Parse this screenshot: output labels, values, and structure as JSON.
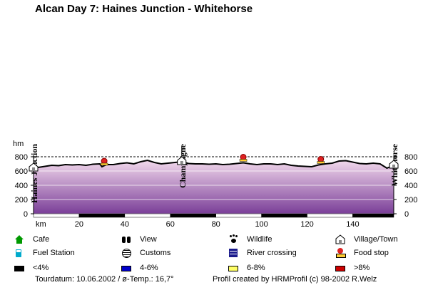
{
  "chart_data": {
    "type": "area",
    "title": "Alcan Day 7: Haines Junction - Whitehorse",
    "xlabel": "km",
    "ylabel": "hm",
    "xlim": [
      0,
      158
    ],
    "ylim": [
      0,
      800
    ],
    "x_ticks": [
      20,
      40,
      60,
      80,
      100,
      120,
      140
    ],
    "y_ticks": [
      0,
      200,
      400,
      600,
      800
    ],
    "x": [
      0,
      2,
      5,
      8,
      11,
      14,
      17,
      20,
      23,
      26,
      29,
      30,
      32,
      35,
      38,
      41,
      44,
      47,
      50,
      53,
      56,
      59,
      62,
      65,
      68,
      71,
      74,
      77,
      80,
      83,
      86,
      89,
      92,
      95,
      98,
      101,
      104,
      107,
      110,
      113,
      116,
      119,
      122,
      125,
      128,
      131,
      134,
      137,
      140,
      143,
      146,
      149,
      152,
      155,
      158
    ],
    "elevation": [
      640,
      650,
      665,
      680,
      675,
      690,
      685,
      690,
      680,
      695,
      700,
      660,
      690,
      690,
      705,
      715,
      700,
      730,
      750,
      720,
      700,
      710,
      720,
      730,
      705,
      700,
      700,
      695,
      700,
      690,
      695,
      705,
      715,
      700,
      690,
      700,
      700,
      690,
      700,
      680,
      670,
      665,
      660,
      685,
      700,
      710,
      740,
      745,
      725,
      705,
      700,
      710,
      700,
      640,
      680
    ],
    "places": [
      {
        "name": "Haines Junction",
        "km": 0
      },
      {
        "name": "Champagne",
        "km": 65
      },
      {
        "name": "Whitehorse",
        "km": 158
      }
    ],
    "food_stops_km": [
      31,
      92,
      126
    ]
  },
  "legend": [
    {
      "icon": "cafe-icon",
      "label": "Cafe"
    },
    {
      "icon": "view-icon",
      "label": "View"
    },
    {
      "icon": "wildlife-icon",
      "label": "Wildlife"
    },
    {
      "icon": "village-icon",
      "label": "Village/Town"
    },
    {
      "icon": "fuel-station-icon",
      "label": "Fuel Station"
    },
    {
      "icon": "customs-icon",
      "label": "Customs"
    },
    {
      "icon": "river-crossing-icon",
      "label": "River crossing"
    },
    {
      "icon": "food-stop-icon",
      "label": "Food stop"
    },
    {
      "icon": "gradient-lt4-swatch",
      "label": "<4%",
      "color": "#000000"
    },
    {
      "icon": "gradient-4-6-swatch",
      "label": "4-6%",
      "color": "#0000cc"
    },
    {
      "icon": "gradient-6-8-swatch",
      "label": "6-8%",
      "color": "#ffff66"
    },
    {
      "icon": "gradient-gt8-swatch",
      "label": ">8%",
      "color": "#cc0000"
    }
  ],
  "footer": {
    "tour_info": "Tourdatum: 10.06.2002  /  ø-Temp.: 16,7°",
    "credit": "Profil created by HRMProfil (c) 98-2002 R.Welz"
  },
  "colors": {
    "fill_top": "#f2d9ec",
    "fill_bottom": "#7a3e98",
    "profile_line": "#000000",
    "food_stop": "#dd2222"
  }
}
